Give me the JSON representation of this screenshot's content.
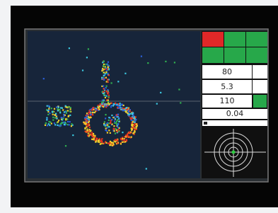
{
  "display": {
    "readouts": [
      "80",
      "5.3",
      "110",
      "0.04"
    ]
  }
}
